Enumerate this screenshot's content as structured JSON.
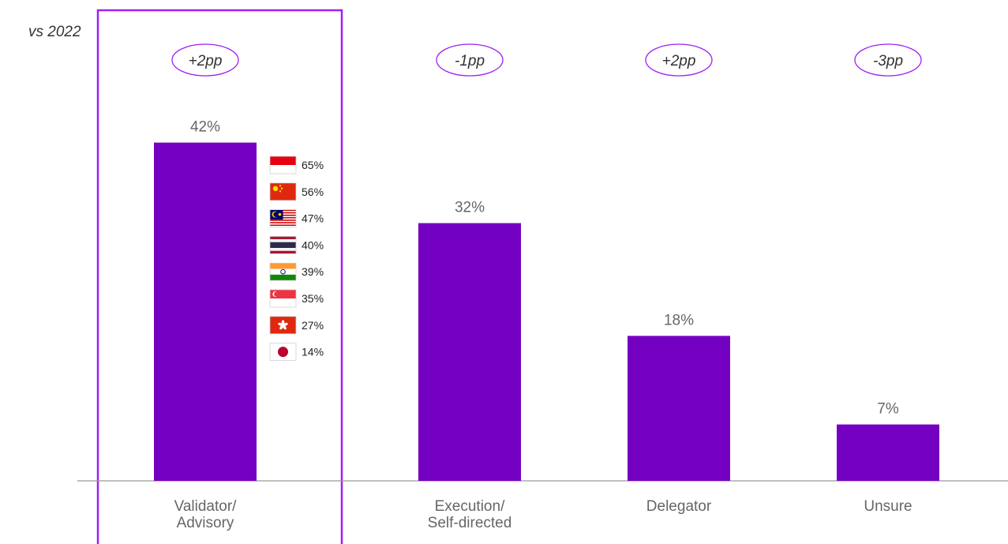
{
  "comparison_label": "vs 2022",
  "colors": {
    "bar": "#7400C2",
    "highlight": "#A020F0",
    "text": "#666666",
    "axis": "#999999"
  },
  "chart_data": {
    "type": "bar",
    "title": "",
    "xlabel": "",
    "ylabel": "",
    "ylim": [
      0,
      50
    ],
    "categories": [
      "Validator/\nAdvisory",
      "Execution/\nSelf-directed",
      "Delegator",
      "Unsure"
    ],
    "values": [
      42,
      32,
      18,
      7
    ],
    "value_labels": [
      "42%",
      "32%",
      "18%",
      "7%"
    ],
    "changes": [
      "+2pp",
      "-1pp",
      "+2pp",
      "-3pp"
    ],
    "highlighted_category": "Validator/\nAdvisory",
    "country_breakdown": [
      {
        "country": "Indonesia",
        "icon": "indonesia-flag-icon",
        "value": "65%"
      },
      {
        "country": "China",
        "icon": "china-flag-icon",
        "value": "56%"
      },
      {
        "country": "Malaysia",
        "icon": "malaysia-flag-icon",
        "value": "47%"
      },
      {
        "country": "Thailand",
        "icon": "thailand-flag-icon",
        "value": "40%"
      },
      {
        "country": "India",
        "icon": "india-flag-icon",
        "value": "39%"
      },
      {
        "country": "Singapore",
        "icon": "singapore-flag-icon",
        "value": "35%"
      },
      {
        "country": "Hong Kong",
        "icon": "hong-kong-flag-icon",
        "value": "27%"
      },
      {
        "country": "Japan",
        "icon": "japan-flag-icon",
        "value": "14%"
      }
    ]
  }
}
